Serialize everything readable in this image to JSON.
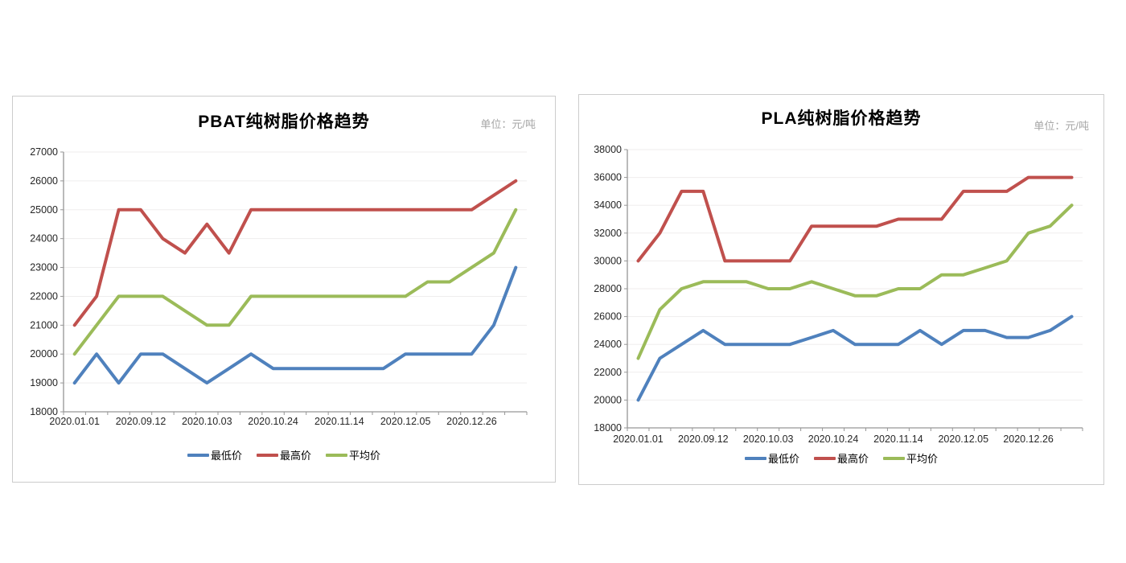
{
  "page": {
    "background": "#ffffff"
  },
  "chart_data": [
    {
      "type": "line",
      "title": "PBAT纯树脂价格趋势",
      "unit_label": "单位：元/吨",
      "x_labels": [
        "2020.01.01",
        "2020.09.12",
        "2020.10.03",
        "2020.10.24",
        "2020.11.14",
        "2020.12.05",
        "2020.12.26"
      ],
      "x_label_indices": [
        0,
        3,
        6,
        9,
        12,
        15,
        18
      ],
      "n_points": 21,
      "ylim": [
        18000,
        27000
      ],
      "y_step": 1000,
      "grid": true,
      "legend_position": "bottom",
      "series": [
        {
          "name": "最低价",
          "color": "#4F81BD",
          "values": [
            19000,
            20000,
            19000,
            20000,
            20000,
            19500,
            19000,
            19500,
            20000,
            19500,
            19500,
            19500,
            19500,
            19500,
            19500,
            20000,
            20000,
            20000,
            20000,
            21000,
            23000
          ]
        },
        {
          "name": "最高价",
          "color": "#C0504D",
          "values": [
            21000,
            22000,
            25000,
            25000,
            24000,
            23500,
            24500,
            23500,
            25000,
            25000,
            25000,
            25000,
            25000,
            25000,
            25000,
            25000,
            25000,
            25000,
            25000,
            25500,
            26000
          ]
        },
        {
          "name": "平均价",
          "color": "#9BBB59",
          "values": [
            20000,
            21000,
            22000,
            22000,
            22000,
            21500,
            21000,
            21000,
            22000,
            22000,
            22000,
            22000,
            22000,
            22000,
            22000,
            22000,
            22500,
            22500,
            23000,
            23500,
            25000
          ]
        }
      ]
    },
    {
      "type": "line",
      "title": "PLA纯树脂价格趋势",
      "unit_label": "单位：元/吨",
      "x_labels": [
        "2020.01.01",
        "2020.09.12",
        "2020.10.03",
        "2020.10.24",
        "2020.11.14",
        "2020.12.05",
        "2020.12.26"
      ],
      "x_label_indices": [
        0,
        3,
        6,
        9,
        12,
        15,
        18
      ],
      "n_points": 21,
      "ylim": [
        18000,
        38000
      ],
      "y_step": 2000,
      "grid": true,
      "legend_position": "bottom",
      "series": [
        {
          "name": "最低价",
          "color": "#4F81BD",
          "values": [
            20000,
            23000,
            24000,
            25000,
            24000,
            24000,
            24000,
            24000,
            24500,
            25000,
            24000,
            24000,
            24000,
            25000,
            24000,
            25000,
            25000,
            24500,
            24500,
            25000,
            26000
          ]
        },
        {
          "name": "最高价",
          "color": "#C0504D",
          "values": [
            30000,
            32000,
            35000,
            35000,
            30000,
            30000,
            30000,
            30000,
            32500,
            32500,
            32500,
            32500,
            33000,
            33000,
            33000,
            35000,
            35000,
            35000,
            36000,
            36000,
            36000
          ]
        },
        {
          "name": "平均价",
          "color": "#9BBB59",
          "values": [
            23000,
            26500,
            28000,
            28500,
            28500,
            28500,
            28000,
            28000,
            28500,
            28000,
            27500,
            27500,
            28000,
            28000,
            29000,
            29000,
            29500,
            30000,
            32000,
            32500,
            34000
          ]
        }
      ]
    }
  ]
}
